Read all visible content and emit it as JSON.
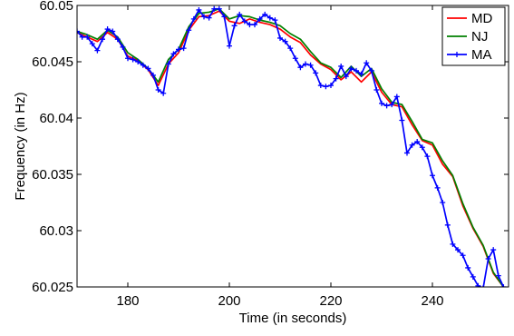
{
  "chart_data": {
    "type": "line",
    "xlabel": "Time (in seconds)",
    "ylabel": "Frequency (in Hz)",
    "xlim": [
      170,
      255
    ],
    "ylim": [
      60.025,
      60.05
    ],
    "xticks": [
      180,
      200,
      220,
      240
    ],
    "yticks": [
      60.025,
      60.03,
      60.035,
      60.04,
      60.045,
      60.05
    ],
    "ytick_labels": [
      "60.025",
      "60.03",
      "60.035",
      "60.04",
      "60.045",
      "60.05"
    ],
    "grid": false,
    "legend_position": "top-right",
    "series": [
      {
        "name": "MD",
        "color": "#ff0000",
        "marker": "none",
        "x": [
          170,
          172,
          174,
          176,
          178,
          180,
          182,
          184,
          186,
          188,
          190,
          192,
          194,
          196,
          198,
          200,
          202,
          204,
          206,
          208,
          210,
          212,
          214,
          216,
          218,
          220,
          222,
          224,
          226,
          228,
          230,
          232,
          234,
          236,
          238,
          240,
          242,
          244,
          246,
          248,
          250,
          252,
          254
        ],
        "y": [
          60.0476,
          60.0472,
          60.0468,
          60.0476,
          60.047,
          60.0455,
          60.0451,
          60.0443,
          60.0429,
          60.0448,
          60.0458,
          60.0478,
          60.049,
          60.0491,
          60.0495,
          60.0486,
          60.0484,
          60.0488,
          60.0485,
          60.0483,
          60.0479,
          60.0472,
          60.0467,
          60.0456,
          60.0448,
          60.0443,
          60.0434,
          60.0441,
          60.0432,
          60.0441,
          60.0423,
          60.0412,
          60.041,
          60.0394,
          60.038,
          60.0376,
          60.0359,
          60.0348,
          60.0322,
          60.0302,
          60.0286,
          60.0262,
          60.025
        ]
      },
      {
        "name": "NJ",
        "color": "#008000",
        "marker": "none",
        "x": [
          170,
          172,
          174,
          176,
          178,
          180,
          182,
          184,
          186,
          188,
          190,
          192,
          194,
          196,
          198,
          200,
          202,
          204,
          206,
          208,
          210,
          212,
          214,
          216,
          218,
          220,
          222,
          224,
          226,
          228,
          230,
          232,
          234,
          236,
          238,
          240,
          242,
          244,
          246,
          248,
          250,
          252,
          254
        ],
        "y": [
          60.0477,
          60.0474,
          60.047,
          60.0478,
          60.0472,
          60.0458,
          60.0452,
          60.0444,
          60.0432,
          60.0452,
          60.0461,
          60.0481,
          60.0493,
          60.0494,
          60.0497,
          60.0488,
          60.0491,
          60.049,
          60.0487,
          60.0485,
          60.0482,
          60.0475,
          60.047,
          60.0459,
          60.0449,
          60.0445,
          60.0436,
          60.0446,
          60.0437,
          60.0444,
          60.0426,
          60.0414,
          60.0412,
          60.0397,
          60.0381,
          60.0378,
          60.0362,
          60.0349,
          60.0324,
          60.0303,
          60.0287,
          60.0263,
          60.025
        ]
      },
      {
        "name": "MA",
        "color": "#0000ff",
        "marker": "+",
        "x": [
          170,
          171,
          172,
          173,
          174,
          175,
          176,
          177,
          178,
          179,
          180,
          181,
          182,
          183,
          184,
          185,
          186,
          187,
          188,
          189,
          190,
          191,
          192,
          193,
          194,
          195,
          196,
          197,
          198,
          199,
          200,
          201,
          202,
          203,
          204,
          205,
          206,
          207,
          208,
          209,
          210,
          211,
          212,
          213,
          214,
          215,
          216,
          217,
          218,
          219,
          220,
          221,
          222,
          223,
          224,
          225,
          226,
          227,
          228,
          229,
          230,
          231,
          232,
          233,
          234,
          235,
          236,
          237,
          238,
          239,
          240,
          241,
          242,
          243,
          244,
          245,
          246,
          247,
          248,
          249,
          250,
          251,
          252,
          253,
          254
        ],
        "y": [
          60.0477,
          60.0472,
          60.0472,
          60.0466,
          60.046,
          60.047,
          60.0479,
          60.0477,
          60.047,
          60.0463,
          60.0453,
          60.0452,
          60.045,
          60.0447,
          60.0444,
          60.0438,
          60.0425,
          60.0422,
          60.0448,
          60.0457,
          60.0461,
          60.0462,
          60.0478,
          60.0488,
          60.0496,
          60.049,
          60.0489,
          60.0497,
          60.0497,
          60.049,
          60.0464,
          60.0482,
          60.0492,
          60.0486,
          60.0483,
          60.0483,
          60.0488,
          60.0492,
          60.0489,
          60.0487,
          60.0471,
          60.0468,
          60.0462,
          60.0453,
          60.0445,
          60.0448,
          60.0447,
          60.044,
          60.0429,
          60.0428,
          60.0429,
          60.0435,
          60.0446,
          60.0437,
          60.0444,
          60.0442,
          60.0439,
          60.0449,
          60.0442,
          60.0425,
          60.0413,
          60.0411,
          60.0412,
          60.0419,
          60.0398,
          60.0369,
          60.0376,
          60.0379,
          60.0374,
          60.0366,
          60.0349,
          60.0338,
          60.0325,
          60.0305,
          60.0288,
          60.0283,
          60.0278,
          60.0267,
          60.0259,
          60.0251,
          60.0249,
          60.0275,
          60.0283,
          60.026,
          60.025
        ]
      }
    ]
  }
}
